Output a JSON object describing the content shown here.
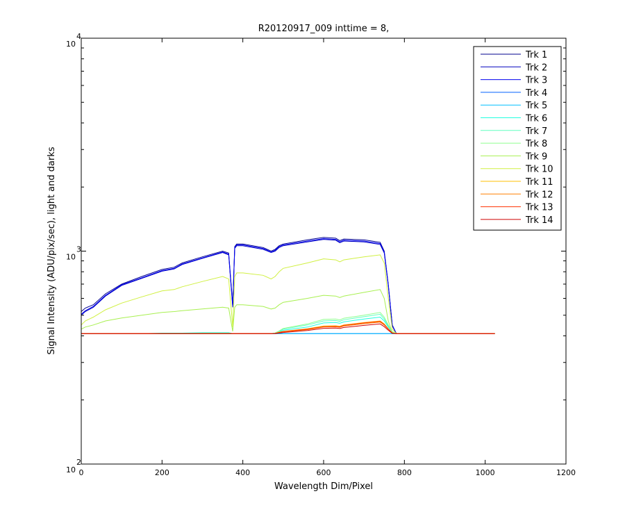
{
  "chart_data": {
    "type": "line",
    "title": "R20120917_009 inttime = 8,",
    "xlabel": "Wavelength Dim/Pixel",
    "ylabel": "Signal Intensity (ADU/pix/sec), light and darks",
    "xlim": [
      0,
      1200
    ],
    "ylim": [
      100,
      10000
    ],
    "yscale": "log",
    "x_ticks": [
      0,
      200,
      400,
      600,
      800,
      1000,
      1200
    ],
    "y_ticks": [
      {
        "base": "10",
        "exp": "2",
        "value": 100
      },
      {
        "base": "10",
        "exp": "3",
        "value": 1000
      },
      {
        "base": "10",
        "exp": "4",
        "value": 10000
      }
    ],
    "grid": false,
    "legend_position": "top-right",
    "x": [
      0,
      10,
      30,
      60,
      100,
      150,
      200,
      230,
      250,
      300,
      350,
      365,
      375,
      380,
      385,
      400,
      450,
      470,
      480,
      490,
      500,
      560,
      600,
      630,
      640,
      650,
      700,
      740,
      750,
      760,
      770,
      780,
      800,
      900,
      1024
    ],
    "series": [
      {
        "name": "Trk 1",
        "color": "#00008f",
        "values": [
          520,
          540,
          560,
          630,
          700,
          760,
          820,
          840,
          880,
          940,
          1000,
          980,
          560,
          1050,
          1080,
          1080,
          1040,
          1000,
          1020,
          1060,
          1080,
          1130,
          1160,
          1150,
          1120,
          1140,
          1130,
          1100,
          1000,
          700,
          450,
          410,
          410,
          410,
          410
        ]
      },
      {
        "name": "Trk 2",
        "color": "#0000bf",
        "values": [
          500,
          520,
          545,
          615,
          690,
          745,
          805,
          825,
          865,
          925,
          985,
          960,
          545,
          1030,
          1060,
          1060,
          1020,
          985,
          1000,
          1040,
          1060,
          1105,
          1135,
          1125,
          1095,
          1115,
          1105,
          1075,
          980,
          690,
          445,
          410,
          410,
          410,
          410
        ]
      },
      {
        "name": "Trk 3",
        "color": "#0000ef",
        "values": [
          505,
          525,
          550,
          620,
          695,
          750,
          810,
          830,
          870,
          930,
          990,
          970,
          550,
          1040,
          1070,
          1070,
          1030,
          990,
          1010,
          1050,
          1070,
          1115,
          1145,
          1135,
          1105,
          1125,
          1115,
          1085,
          990,
          695,
          448,
          410,
          410,
          410,
          410
        ]
      },
      {
        "name": "Trk 4",
        "color": "#0060ff",
        "values": [
          410,
          410,
          410,
          410,
          410,
          410,
          410,
          410,
          410,
          410,
          410,
          410,
          410,
          410,
          410,
          410,
          410,
          410,
          410,
          410,
          410,
          410,
          410,
          410,
          410,
          410,
          410,
          410,
          410,
          410,
          410,
          410,
          410,
          410,
          410
        ]
      },
      {
        "name": "Trk 5",
        "color": "#00bfff",
        "values": [
          410,
          410,
          410,
          410,
          410,
          410,
          410,
          410,
          410,
          410,
          412,
          412,
          410,
          410,
          410,
          410,
          410,
          410,
          410,
          410,
          410,
          410,
          410,
          410,
          410,
          410,
          410,
          410,
          410,
          410,
          410,
          410,
          410,
          410,
          410
        ]
      },
      {
        "name": "Trk 6",
        "color": "#20ffdf",
        "values": [
          410,
          410,
          410,
          410,
          410,
          410,
          412,
          412,
          412,
          414,
          414,
          414,
          410,
          410,
          410,
          410,
          410,
          410,
          412,
          418,
          425,
          440,
          460,
          462,
          458,
          465,
          480,
          490,
          470,
          440,
          415,
          410,
          410,
          410,
          410
        ]
      },
      {
        "name": "Trk 7",
        "color": "#60ffbf",
        "values": [
          410,
          410,
          410,
          410,
          410,
          410,
          410,
          410,
          410,
          412,
          412,
          412,
          410,
          410,
          410,
          410,
          410,
          410,
          412,
          420,
          430,
          450,
          470,
          472,
          468,
          476,
          492,
          505,
          480,
          445,
          416,
          410,
          410,
          410,
          410
        ]
      },
      {
        "name": "Trk 8",
        "color": "#8fff8f",
        "values": [
          410,
          410,
          410,
          410,
          410,
          410,
          410,
          410,
          410,
          410,
          410,
          410,
          410,
          410,
          410,
          410,
          410,
          410,
          413,
          422,
          433,
          455,
          478,
          480,
          475,
          484,
          500,
          515,
          490,
          450,
          418,
          410,
          410,
          410,
          410
        ]
      },
      {
        "name": "Trk 9",
        "color": "#a8f050",
        "values": [
          430,
          440,
          450,
          470,
          485,
          500,
          515,
          520,
          525,
          535,
          545,
          540,
          420,
          545,
          560,
          560,
          550,
          535,
          540,
          560,
          575,
          600,
          620,
          615,
          605,
          615,
          640,
          660,
          600,
          470,
          415,
          410,
          410,
          410,
          410
        ]
      },
      {
        "name": "Trk 10",
        "color": "#d0f040",
        "values": [
          450,
          470,
          490,
          530,
          570,
          610,
          650,
          660,
          680,
          720,
          760,
          740,
          440,
          760,
          790,
          790,
          770,
          740,
          760,
          800,
          830,
          880,
          920,
          910,
          890,
          910,
          940,
          960,
          880,
          600,
          430,
          410,
          410,
          410,
          410
        ]
      },
      {
        "name": "Trk 11",
        "color": "#ffbf00",
        "values": [
          410,
          410,
          410,
          410,
          410,
          410,
          410,
          410,
          410,
          410,
          410,
          410,
          410,
          410,
          410,
          410,
          410,
          410,
          411,
          416,
          420,
          432,
          445,
          446,
          444,
          450,
          462,
          470,
          455,
          432,
          412,
          410,
          410,
          410,
          410
        ]
      },
      {
        "name": "Trk 12",
        "color": "#ff8000",
        "values": [
          410,
          410,
          410,
          410,
          410,
          410,
          410,
          410,
          410,
          410,
          410,
          410,
          410,
          410,
          410,
          410,
          410,
          410,
          411,
          414,
          418,
          428,
          440,
          441,
          439,
          445,
          456,
          464,
          450,
          430,
          412,
          410,
          410,
          410,
          410
        ]
      },
      {
        "name": "Trk 13",
        "color": "#ff3000",
        "values": [
          410,
          410,
          410,
          410,
          410,
          410,
          410,
          410,
          410,
          410,
          410,
          410,
          410,
          410,
          410,
          410,
          410,
          410,
          411,
          415,
          419,
          430,
          442,
          443,
          441,
          448,
          460,
          468,
          452,
          431,
          412,
          410,
          410,
          410,
          410
        ]
      },
      {
        "name": "Trk 14",
        "color": "#cf0000",
        "values": [
          410,
          410,
          410,
          410,
          410,
          410,
          410,
          410,
          410,
          410,
          410,
          410,
          410,
          410,
          410,
          410,
          410,
          410,
          410,
          412,
          415,
          424,
          434,
          435,
          433,
          438,
          448,
          455,
          442,
          425,
          411,
          410,
          410,
          410,
          410
        ]
      }
    ]
  }
}
